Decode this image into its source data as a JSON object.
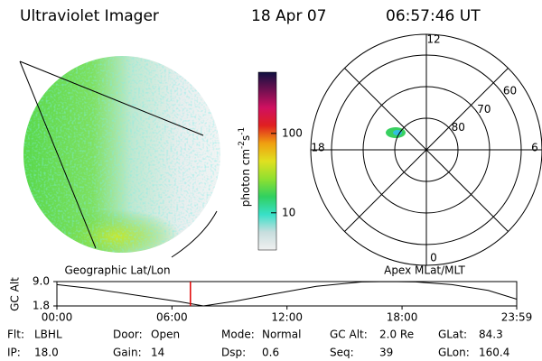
{
  "header": {
    "instrument": "Ultraviolet Imager",
    "date": "18 Apr 07",
    "time": "06:57:46 UT"
  },
  "left_caption": "Geographic Lat/Lon",
  "colorbar": {
    "label": "photon cm",
    "label_exp1": "-2",
    "label_unit2": "s",
    "label_exp2": "-1",
    "scale": "log",
    "lim": [
      3.4,
      590
    ],
    "ticks": [
      10,
      100
    ],
    "colors": [
      "#f0f0f0",
      "#c8dede",
      "#38e0c8",
      "#30d060",
      "#90e030",
      "#e0e020",
      "#f0a010",
      "#e02020",
      "#d01060",
      "#701050",
      "#101040"
    ]
  },
  "polar": {
    "caption": "Apex MLat/MLT",
    "mlt_ticks": [
      0,
      6,
      12,
      18
    ],
    "lat_ticks": [
      80,
      70,
      60
    ]
  },
  "chart_data": {
    "type": "line",
    "ylabel": "GC Alt",
    "x": [
      0,
      1.74,
      4.1,
      6.46,
      7.64,
      9.29,
      11.17,
      13.53,
      15.89,
      17.3,
      18.72,
      20.6,
      22.49,
      23.98
    ],
    "values": [
      8.1,
      7.0,
      5.0,
      3.0,
      1.8,
      3.2,
      5.2,
      7.6,
      8.9,
      9.0,
      8.9,
      8.1,
      6.4,
      3.8
    ],
    "color": "#000000",
    "current_time": 6.963,
    "marker_color": "#e00000",
    "xlim": [
      0,
      23.98
    ],
    "ylim": [
      1.8,
      9.0
    ],
    "yticks": [
      {
        "value": 9,
        "label": "9.0"
      },
      1.8
    ],
    "xticks": [
      {
        "value": 0,
        "label": "00:00"
      },
      {
        "value": 6,
        "label": "06:00"
      },
      {
        "value": 12,
        "label": "12:00"
      },
      {
        "value": 18,
        "label": "18:00"
      },
      {
        "value": 23.98,
        "label": "23:59"
      }
    ]
  },
  "info": [
    [
      {
        "label": "Flt:",
        "value": "LBHL"
      },
      {
        "label": "Door:",
        "value": "Open"
      },
      {
        "label": "Mode:",
        "value": "Normal"
      },
      {
        "label": "GC Alt:",
        "value": "2.0 Re"
      },
      {
        "label": "GLat:",
        "value": "84.3"
      }
    ],
    [
      {
        "label": "IP:",
        "value": "18.0"
      },
      {
        "label": "Gain:",
        "value": "14"
      },
      {
        "label": "Dsp:",
        "value": "0.6"
      },
      {
        "label": "Seq:",
        "value": "39"
      },
      {
        "label": "GLon:",
        "value": "160.4"
      }
    ]
  ]
}
